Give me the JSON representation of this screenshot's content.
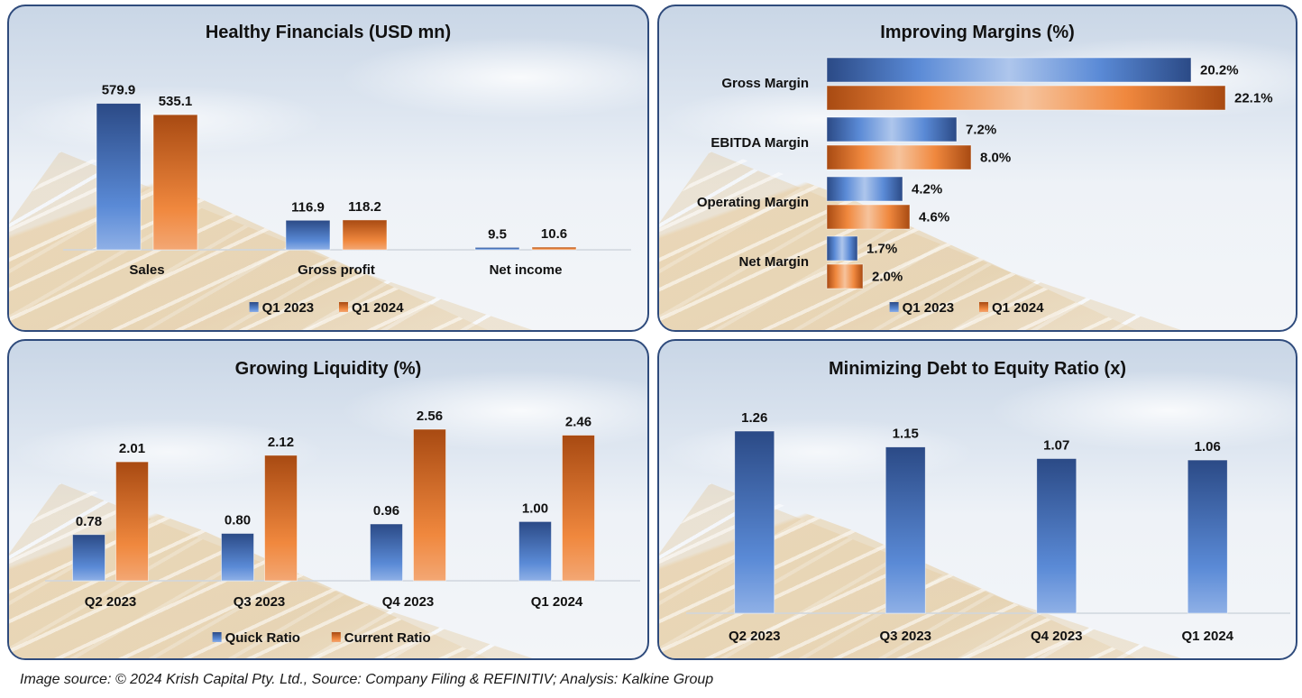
{
  "colors": {
    "blue_dark": "#2b4a86",
    "blue_light": "#5a8ad6",
    "orange_dark": "#a84a12",
    "orange_light": "#f0883e",
    "border": "#2f4b7c"
  },
  "chart_data": [
    {
      "id": "healthy-financials",
      "type": "bar",
      "orientation": "vertical",
      "title": "Healthy Financials (USD mn)",
      "categories": [
        "Sales",
        "Gross profit",
        "Net income"
      ],
      "series": [
        {
          "name": "Q1 2023",
          "values": [
            579.9,
            116.9,
            9.5
          ],
          "labels": [
            "579.9",
            "116.9",
            "9.5"
          ]
        },
        {
          "name": "Q1 2024",
          "values": [
            535.1,
            118.2,
            10.6
          ],
          "labels": [
            "535.1",
            "118.2",
            "10.6"
          ]
        }
      ],
      "xlabel": "",
      "ylabel": "",
      "ylim": [
        0,
        600
      ],
      "grid": false,
      "legend": "bottom"
    },
    {
      "id": "improving-margins",
      "type": "bar",
      "orientation": "horizontal",
      "title": "Improving Margins (%)",
      "categories": [
        "Gross Margin",
        "EBITDA Margin",
        "Operating Margin",
        "Net Margin"
      ],
      "series": [
        {
          "name": "Q1 2023",
          "values": [
            20.2,
            7.2,
            4.2,
            1.7
          ],
          "labels": [
            "20.2%",
            "7.2%",
            "4.2%",
            "1.7%"
          ]
        },
        {
          "name": "Q1 2024",
          "values": [
            22.1,
            8.0,
            4.6,
            2.0
          ],
          "labels": [
            "22.1%",
            "8.0%",
            "4.6%",
            "2.0%"
          ]
        }
      ],
      "xlabel": "",
      "ylabel": "",
      "xlim": [
        0,
        22.1
      ],
      "grid": false,
      "legend": "bottom"
    },
    {
      "id": "growing-liquidity",
      "type": "bar",
      "orientation": "vertical",
      "title": "Growing Liquidity (%)",
      "categories": [
        "Q2 2023",
        "Q3 2023",
        "Q4 2023",
        "Q1 2024"
      ],
      "series": [
        {
          "name": "Quick Ratio",
          "values": [
            0.78,
            0.8,
            0.96,
            1.0
          ],
          "labels": [
            "0.78",
            "0.80",
            "0.96",
            "1.00"
          ]
        },
        {
          "name": "Current Ratio",
          "values": [
            2.01,
            2.12,
            2.56,
            2.46
          ],
          "labels": [
            "2.01",
            "2.12",
            "2.56",
            "2.46"
          ]
        }
      ],
      "xlabel": "",
      "ylabel": "",
      "ylim": [
        0,
        2.56
      ],
      "grid": false,
      "legend": "bottom"
    },
    {
      "id": "debt-to-equity",
      "type": "bar",
      "orientation": "vertical",
      "title": "Minimizing Debt to Equity Ratio (x)",
      "categories": [
        "Q2 2023",
        "Q3 2023",
        "Q4 2023",
        "Q1 2024"
      ],
      "series": [
        {
          "name": "Debt to Equity",
          "values": [
            1.26,
            1.15,
            1.07,
            1.06
          ],
          "labels": [
            "1.26",
            "1.15",
            "1.07",
            "1.06"
          ]
        }
      ],
      "xlabel": "",
      "ylabel": "",
      "ylim": [
        0,
        1.26
      ],
      "grid": false,
      "legend": "none"
    }
  ],
  "footer": {
    "text": "Image source: © 2024 Krish Capital Pty. Ltd., Source: Company Filing & REFINITIV; Analysis: Kalkine Group"
  }
}
